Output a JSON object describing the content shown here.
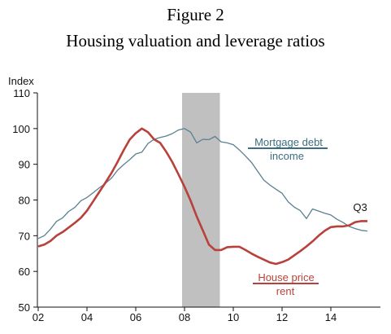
{
  "figure": {
    "label": "Figure 2",
    "title": "Housing valuation and leverage ratios"
  },
  "chart_data": {
    "type": "line",
    "title": "Housing valuation and leverage ratios",
    "ylabel": "Index",
    "xlabel": "",
    "xlim": [
      2002.0,
      2016.0
    ],
    "ylim": [
      50,
      110
    ],
    "yticks": [
      50,
      60,
      70,
      80,
      90,
      100,
      110
    ],
    "xtick_labels": [
      "02",
      "04",
      "06",
      "08",
      "10",
      "12",
      "14"
    ],
    "xtick_values": [
      2002,
      2004,
      2006,
      2008,
      2010,
      2012,
      2014
    ],
    "shaded_region": [
      2007.9,
      2009.45
    ],
    "shade_color": "#c0c0c0",
    "end_label": "Q3",
    "series": [
      {
        "key": "debt",
        "label_line1": "Mortgage debt",
        "label_line2": "income",
        "color": "#5a8191",
        "x": [
          2002.0,
          2002.25,
          2002.5,
          2002.75,
          2003.0,
          2003.25,
          2003.5,
          2003.75,
          2004.0,
          2004.25,
          2004.5,
          2004.75,
          2005.0,
          2005.25,
          2005.5,
          2005.75,
          2006.0,
          2006.25,
          2006.5,
          2006.75,
          2007.0,
          2007.25,
          2007.5,
          2007.75,
          2008.0,
          2008.25,
          2008.5,
          2008.75,
          2009.0,
          2009.25,
          2009.5,
          2009.75,
          2010.0,
          2010.25,
          2010.5,
          2010.75,
          2011.0,
          2011.25,
          2011.5,
          2011.75,
          2012.0,
          2012.25,
          2012.5,
          2012.75,
          2013.0,
          2013.25,
          2013.5,
          2013.75,
          2014.0,
          2014.25,
          2014.5,
          2014.75,
          2015.0,
          2015.25,
          2015.5
        ],
        "values": [
          69.2,
          70.0,
          71.8,
          74.0,
          75.0,
          76.8,
          77.9,
          79.8,
          80.7,
          82.0,
          83.4,
          84.6,
          86.1,
          88.3,
          89.9,
          91.3,
          92.9,
          93.4,
          95.8,
          97.0,
          97.5,
          97.9,
          98.6,
          99.6,
          100.0,
          99.0,
          96.0,
          97.0,
          96.9,
          97.8,
          96.3,
          96.0,
          95.5,
          94.0,
          92.3,
          90.5,
          88.0,
          85.6,
          84.2,
          83.0,
          81.9,
          79.5,
          78.0,
          77.0,
          74.8,
          77.5,
          76.9,
          76.3,
          75.8,
          74.6,
          73.7,
          72.6,
          72.0,
          71.5,
          71.3
        ]
      },
      {
        "key": "price",
        "label_line1": "House price",
        "label_line2": "rent",
        "color": "#b8413b",
        "x": [
          2002.0,
          2002.25,
          2002.5,
          2002.75,
          2003.0,
          2003.25,
          2003.5,
          2003.75,
          2004.0,
          2004.25,
          2004.5,
          2004.75,
          2005.0,
          2005.25,
          2005.5,
          2005.75,
          2006.0,
          2006.25,
          2006.5,
          2006.75,
          2007.0,
          2007.25,
          2007.5,
          2007.75,
          2008.0,
          2008.25,
          2008.5,
          2008.75,
          2009.0,
          2009.25,
          2009.5,
          2009.75,
          2010.0,
          2010.25,
          2010.5,
          2010.75,
          2011.0,
          2011.25,
          2011.5,
          2011.75,
          2012.0,
          2012.25,
          2012.5,
          2012.75,
          2013.0,
          2013.25,
          2013.5,
          2013.75,
          2014.0,
          2014.25,
          2014.5,
          2014.75,
          2015.0,
          2015.25,
          2015.5
        ],
        "values": [
          67.0,
          67.5,
          68.5,
          70.0,
          71.0,
          72.3,
          73.6,
          75.0,
          77.0,
          79.6,
          82.2,
          84.8,
          87.5,
          90.6,
          93.9,
          96.9,
          98.7,
          100.0,
          99.0,
          97.0,
          96.0,
          93.5,
          90.6,
          87.2,
          83.7,
          79.8,
          75.4,
          71.5,
          67.5,
          66.0,
          66.0,
          66.8,
          66.9,
          66.9,
          66.0,
          65.0,
          64.1,
          63.3,
          62.5,
          62.1,
          62.6,
          63.3,
          64.5,
          65.7,
          67.0,
          68.4,
          70.0,
          71.4,
          72.4,
          72.6,
          72.6,
          72.9,
          73.8,
          74.1,
          74.1
        ]
      }
    ]
  }
}
